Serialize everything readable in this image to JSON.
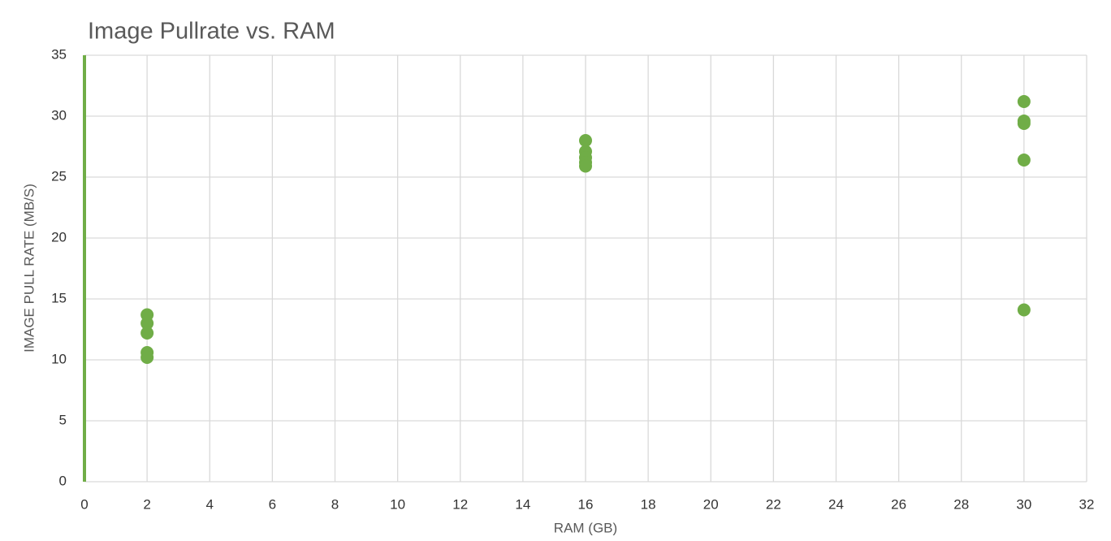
{
  "chart_data": {
    "type": "scatter",
    "title": "Image Pullrate vs. RAM",
    "x_label": "RAM (GB)",
    "y_label": "IMAGE PULL RATE (MB/S)",
    "x": [
      2,
      2,
      2,
      2,
      2,
      16,
      16,
      16,
      16,
      16,
      30,
      30,
      30,
      30,
      30
    ],
    "values": [
      13.7,
      13.0,
      12.2,
      10.6,
      10.2,
      28.0,
      27.1,
      26.6,
      26.2,
      25.9,
      31.2,
      29.6,
      29.4,
      26.4,
      14.1
    ],
    "color": "#70ad47",
    "xlim": [
      0,
      32
    ],
    "xticks": [
      0,
      2,
      4,
      6,
      8,
      10,
      12,
      14,
      16,
      18,
      20,
      22,
      24,
      26,
      28,
      30,
      32
    ],
    "ylim": [
      0,
      35
    ],
    "yticks": [
      0,
      5,
      10,
      15,
      20,
      25,
      30,
      35
    ],
    "grid": true
  }
}
